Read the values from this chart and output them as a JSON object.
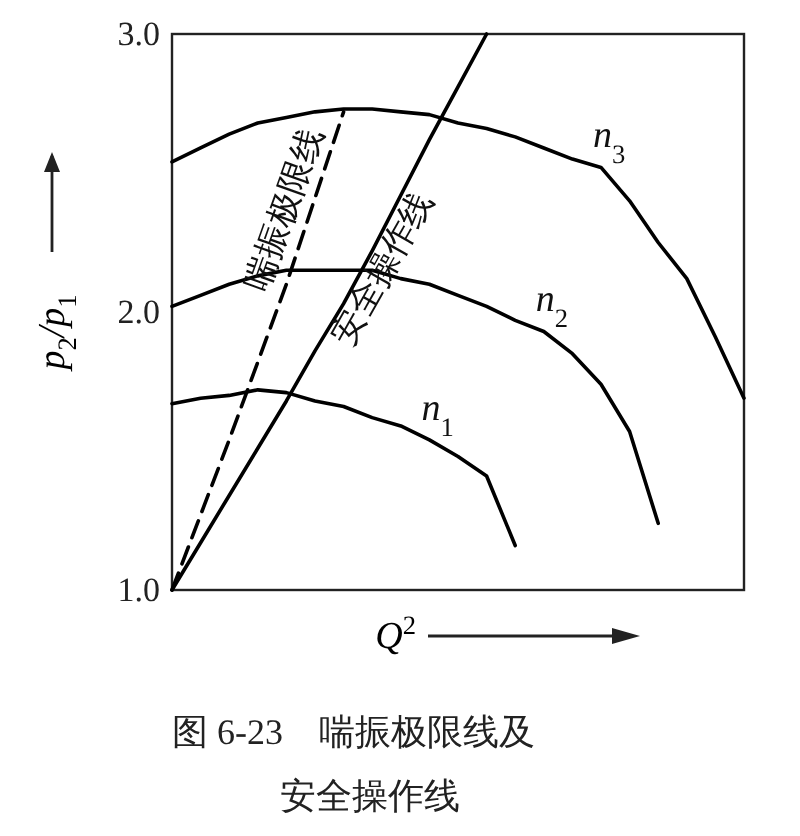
{
  "chart_data": {
    "type": "line",
    "categories": [
      null,
      null,
      null,
      null,
      null,
      null,
      null,
      null,
      null,
      null,
      null,
      null,
      null,
      null,
      null,
      null,
      null,
      null,
      null,
      null,
      null
    ],
    "series": [
      {
        "name": "n$_{1}$",
        "color": "#000000",
        "line_style": "solid",
        "values": [
          1.67,
          1.69,
          1.7,
          1.72,
          1.71,
          1.68,
          1.66,
          1.62,
          1.59,
          1.54,
          1.48,
          1.41,
          1.16,
          null,
          null,
          null,
          null,
          null,
          null,
          null,
          null
        ]
      },
      {
        "name": "n$_{2}$",
        "color": "#000000",
        "line_style": "solid",
        "values": [
          2.02,
          2.06,
          2.1,
          2.13,
          2.15,
          2.15,
          2.15,
          2.15,
          2.12,
          2.1,
          2.06,
          2.02,
          1.97,
          1.93,
          1.85,
          1.74,
          1.57,
          1.24,
          null,
          null,
          null
        ]
      },
      {
        "name": "n$_{3}$",
        "color": "#000000",
        "line_style": "solid",
        "values": [
          2.54,
          2.59,
          2.64,
          2.68,
          2.7,
          2.72,
          2.73,
          2.73,
          2.72,
          2.71,
          2.68,
          2.66,
          2.63,
          2.59,
          2.55,
          2.52,
          2.4,
          2.25,
          2.12,
          1.91,
          1.69
        ]
      },
      {
        "name": "喘振极限线",
        "color": "#000000",
        "line_style": "dashed",
        "values": [
          1.0,
          1.27,
          1.54,
          1.82,
          2.1,
          2.41,
          2.72,
          null,
          null,
          null,
          null,
          null,
          null,
          null,
          null,
          null,
          null,
          null,
          null,
          null,
          null
        ]
      },
      {
        "name": "安全操作线",
        "color": "#000000",
        "line_style": "solid",
        "values": [
          1.0,
          1.17,
          1.34,
          1.51,
          1.68,
          1.86,
          2.03,
          2.22,
          2.42,
          2.62,
          2.81,
          3.0,
          null,
          null,
          null,
          null,
          null,
          null,
          null,
          null,
          null
        ]
      }
    ],
    "xlabel": "Q$^{2}$",
    "ylabel": "p$_{2}$/p$_{1}$",
    "ylim": [
      1.0,
      3.0
    ],
    "yticks": [
      {
        "value": 1.0,
        "label": "1.0"
      },
      {
        "value": 2.0,
        "label": "2.0"
      },
      {
        "value": 3.0,
        "label": "3.0"
      }
    ],
    "tick_labels": "y",
    "grid": false,
    "legend": false,
    "marker": "none",
    "annotations": [
      "图 6-23　喘振极限线及",
      "安全操作线"
    ]
  }
}
